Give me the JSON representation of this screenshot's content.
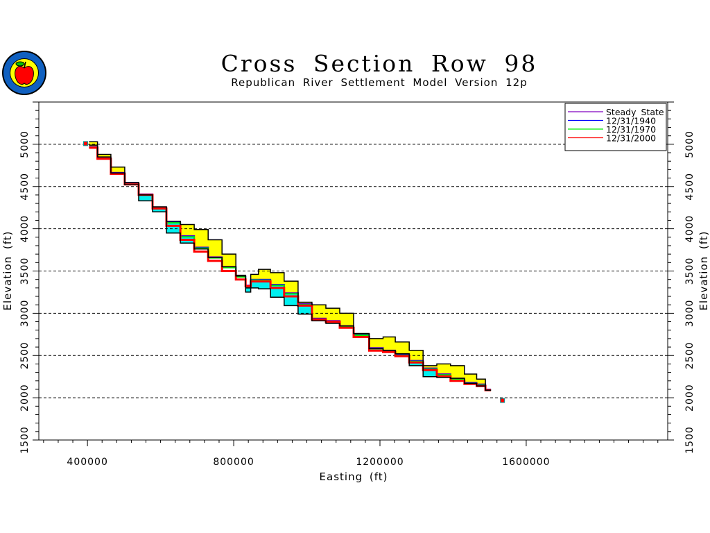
{
  "chart_data": {
    "type": "area",
    "title": "Cross Section Row 98",
    "subtitle": "Republican River Settlement Model Version 12p",
    "xlabel": "Easting (ft)",
    "ylabel": "Elevation (ft)",
    "xlim": [
      267000,
      1987000
    ],
    "ylim": [
      1500,
      5500
    ],
    "x_ticks": [
      400000,
      800000,
      1200000,
      1600000
    ],
    "x_tick_labels": [
      "400000",
      "800000",
      "1200000",
      "1600000"
    ],
    "y_ticks": [
      1500,
      2000,
      2500,
      3000,
      3500,
      4000,
      4500,
      5000
    ],
    "y_tick_labels": [
      "1500",
      "2000",
      "2500",
      "3000",
      "3500",
      "4000",
      "4500",
      "5000"
    ],
    "grid": "horizontal dashed",
    "legend_position": "top-right",
    "legend": [
      {
        "label": "Steady State",
        "color": "#8000c0"
      },
      {
        "label": "12/31/1940",
        "color": "#0000ff"
      },
      {
        "label": "12/31/1970",
        "color": "#00ee00"
      },
      {
        "label": "12/31/2000",
        "color": "#ff0000"
      }
    ],
    "fill_colors": {
      "unsaturated": "#ffff00",
      "saturated": "#00f0f0"
    },
    "x": [
      410000,
      445000,
      483000,
      521000,
      559000,
      597000,
      635000,
      673000,
      711000,
      749000,
      787000,
      825000,
      840000,
      853000,
      882000,
      919000,
      957000,
      995000,
      1033000,
      1071000,
      1109000,
      1147000,
      1194000,
      1223000,
      1261000,
      1299000,
      1337000,
      1374000,
      1412000,
      1450000,
      1479000,
      1498000
    ],
    "land_surface": [
      5030,
      4880,
      4730,
      4550,
      4400,
      4260,
      4090,
      4050,
      3990,
      3870,
      3700,
      3440,
      3300,
      3460,
      3520,
      3480,
      3380,
      3130,
      3100,
      3060,
      3000,
      2760,
      2700,
      2720,
      2660,
      2560,
      2380,
      2400,
      2380,
      2280,
      2220,
      2090
    ],
    "aquifer_bottom": [
      4990,
      4850,
      4660,
      4520,
      4330,
      4200,
      3950,
      3830,
      3760,
      3660,
      3550,
      3450,
      3250,
      3300,
      3290,
      3190,
      3090,
      2990,
      2910,
      2880,
      2850,
      2760,
      2580,
      2560,
      2520,
      2380,
      2250,
      2240,
      2230,
      2170,
      2140,
      2090
    ],
    "series": [
      {
        "name": "Steady State",
        "values": [
          4970,
          4835,
          4665,
          4535,
          4410,
          4255,
          4080,
          3915,
          3780,
          3665,
          3550,
          3440,
          3330,
          3400,
          3400,
          3340,
          3240,
          3110,
          2940,
          2910,
          2850,
          2750,
          2590,
          2560,
          2510,
          2440,
          2350,
          2280,
          2230,
          2180,
          2160,
          2100
        ]
      },
      {
        "name": "12/31/1940",
        "values": [
          4965,
          4832,
          4660,
          4530,
          4405,
          4250,
          4075,
          3910,
          3775,
          3660,
          3545,
          3435,
          3325,
          3395,
          3395,
          3335,
          3235,
          3105,
          2935,
          2905,
          2845,
          2745,
          2585,
          2555,
          2505,
          2435,
          2345,
          2275,
          2225,
          2175,
          2155,
          2095
        ]
      },
      {
        "name": "12/31/1970",
        "values": [
          4962,
          4830,
          4658,
          4528,
          4402,
          4245,
          4070,
          3905,
          3770,
          3655,
          3540,
          3430,
          3322,
          3392,
          3390,
          3330,
          3230,
          3100,
          2930,
          2900,
          2840,
          2740,
          2580,
          2550,
          2500,
          2430,
          2340,
          2270,
          2220,
          2170,
          2150,
          2092
        ]
      },
      {
        "name": "12/31/2000",
        "values": [
          4959,
          4828,
          4650,
          4525,
          4402,
          4240,
          4035,
          3870,
          3730,
          3620,
          3500,
          3400,
          3320,
          3377,
          3377,
          3300,
          3200,
          3090,
          2926,
          2900,
          2828,
          2720,
          2557,
          2541,
          2492,
          2418,
          2328,
          2254,
          2200,
          2164,
          2139,
          2090
        ]
      }
    ],
    "isolated_points": [
      {
        "x": 395000,
        "elev": 5000
      },
      {
        "x": 1535000,
        "elev": 1960
      }
    ]
  }
}
